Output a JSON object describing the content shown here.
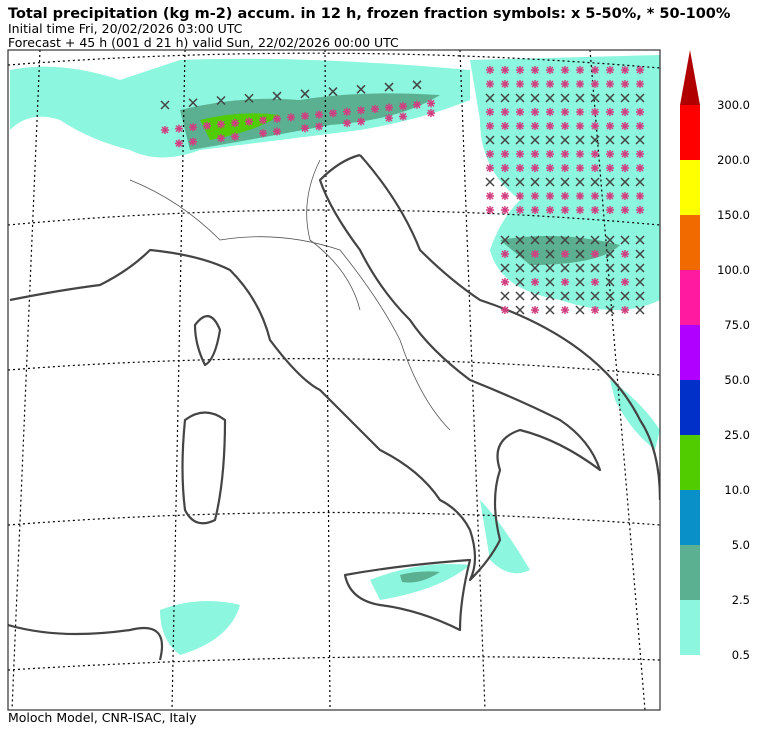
{
  "header": {
    "title": "Total precipitation (kg m-2) accum. in 12 h, frozen fraction symbols: x 5-50%, * 50-100%",
    "initial_time": "Initial time  Fri, 20/02/2026  03:00 UTC",
    "forecast": "Forecast  +  45 h  (001 d 21 h)  valid Sun, 22/02/2026 00:00 UTC"
  },
  "colorbar": {
    "labels": [
      "300.0",
      "200.0",
      "150.0",
      "100.0",
      "75.0",
      "50.0",
      "25.0",
      "10.0",
      "5.0",
      "2.5",
      "0.5"
    ],
    "colors": [
      "#b00000",
      "#ff0000",
      "#ffff00",
      "#f06a00",
      "#ff1aa0",
      "#b000ff",
      "#0030c8",
      "#50cc00",
      "#0a90c8",
      "#5ab090",
      "#8cf7de"
    ]
  },
  "footer": {
    "credit": "Moloch Model, CNR-ISAC, Italy"
  }
}
